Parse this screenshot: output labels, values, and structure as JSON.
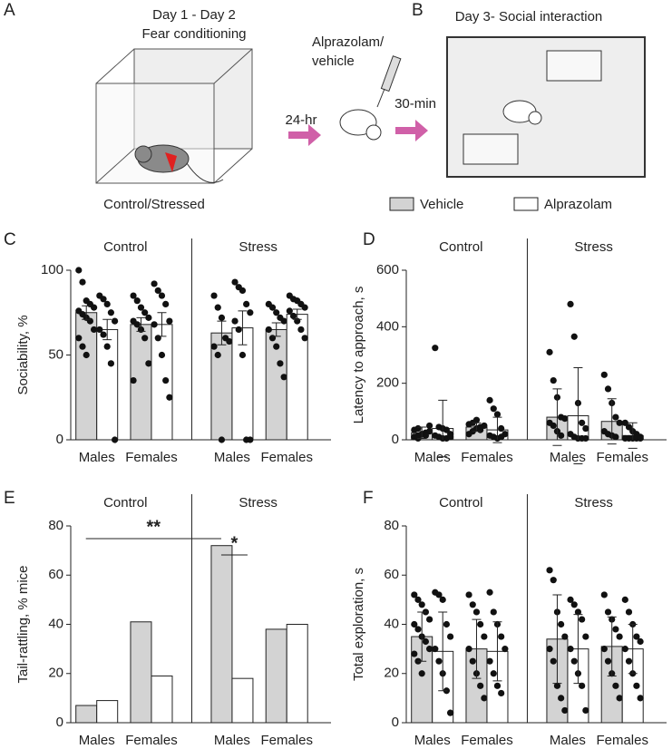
{
  "illustration": {
    "panel_a": "A",
    "panel_b": "B",
    "day12": "Day 1 - Day 2",
    "fear": "Fear conditioning",
    "group": "Control/Stressed",
    "drug1": "Alprazolam/",
    "drug2": "vehicle",
    "wait1": "24-hr",
    "wait2": "30-min",
    "day3": "Day 3- Social interaction"
  },
  "legend": [
    {
      "name": "Vehicle",
      "color": "#d3d3d3"
    },
    {
      "name": "Alprazolam",
      "color": "#ffffff"
    }
  ],
  "chart_data": [
    {
      "type": "bar",
      "panel": "C",
      "ylabel": "Sociability, %",
      "groups": [
        "Control",
        "Stress"
      ],
      "categories": [
        "Males",
        "Females",
        "Males",
        "Females"
      ],
      "ylim": [
        0,
        100
      ],
      "yticks": [
        0,
        50,
        100
      ],
      "series": [
        {
          "values": [
            75,
            68,
            63,
            65
          ],
          "errors": [
            4,
            4,
            7,
            4
          ],
          "points": [
            [
              100,
              93,
              82,
              80,
              78,
              76,
              74,
              72,
              70,
              65,
              60,
              55,
              50
            ],
            [
              85,
              82,
              78,
              75,
              72,
              70,
              68,
              65,
              60,
              45,
              35
            ],
            [
              85,
              78,
              72,
              60,
              58,
              55,
              50,
              0
            ],
            [
              80,
              78,
              75,
              72,
              70,
              65,
              60,
              55,
              45,
              37
            ]
          ]
        },
        {
          "values": [
            65,
            68,
            66,
            74
          ],
          "errors": [
            6,
            7,
            10,
            3
          ],
          "points": [
            [
              85,
              83,
              80,
              75,
              70,
              65,
              62,
              55,
              45,
              0
            ],
            [
              92,
              88,
              85,
              80,
              70,
              68,
              60,
              50,
              35,
              25
            ],
            [
              93,
              90,
              88,
              80,
              75,
              70,
              65,
              50,
              0,
              0
            ],
            [
              85,
              83,
              82,
              80,
              78,
              76,
              73,
              70,
              65,
              60
            ]
          ]
        }
      ]
    },
    {
      "type": "bar",
      "panel": "D",
      "ylabel": "Latency to approach, s",
      "groups": [
        "Control",
        "Stress"
      ],
      "categories": [
        "Males",
        "Females",
        "Males",
        "Females"
      ],
      "ylim": [
        0,
        600
      ],
      "yticks": [
        0,
        200,
        400,
        600
      ],
      "series": [
        {
          "values": [
            25,
            45,
            80,
            65
          ],
          "errors": [
            20,
            15,
            100,
            80
          ],
          "points": [
            [
              10,
              15,
              20,
              25,
              30,
              35,
              40,
              20,
              15,
              50,
              10,
              5
            ],
            [
              20,
              30,
              40,
              45,
              50,
              55,
              60,
              70,
              35
            ],
            [
              310,
              210,
              150,
              80,
              75,
              60,
              50,
              30,
              15
            ],
            [
              230,
              180,
              130,
              80,
              60,
              30,
              20,
              15,
              10
            ]
          ]
        },
        {
          "values": [
            40,
            35,
            85,
            15
          ],
          "errors": [
            100,
            45,
            170,
            45
          ],
          "points": [
            [
              325,
              45,
              40,
              35,
              20,
              15,
              10,
              5,
              5,
              10
            ],
            [
              140,
              110,
              90,
              40,
              20,
              15,
              10,
              5,
              10
            ],
            [
              480,
              365,
              130,
              60,
              40,
              20,
              10,
              5,
              5,
              5
            ],
            [
              60,
              45,
              30,
              20,
              10,
              5,
              5,
              5,
              5,
              5
            ]
          ]
        }
      ]
    },
    {
      "type": "bar",
      "panel": "E",
      "ylabel": "Tail-rattling, % mice",
      "groups": [
        "Control",
        "Stress"
      ],
      "categories": [
        "Males",
        "Females",
        "Males",
        "Females"
      ],
      "ylim": [
        0,
        80
      ],
      "yticks": [
        0,
        20,
        40,
        60,
        80
      ],
      "annotations": [
        "**",
        "*"
      ],
      "series": [
        {
          "values": [
            7,
            41,
            72,
            38
          ]
        },
        {
          "values": [
            9,
            19,
            18,
            40
          ]
        }
      ]
    },
    {
      "type": "bar",
      "panel": "F",
      "ylabel": "Total exploration, s",
      "groups": [
        "Control",
        "Stress"
      ],
      "categories": [
        "Males",
        "Females",
        "Males",
        "Females"
      ],
      "ylim": [
        0,
        80
      ],
      "yticks": [
        0,
        20,
        40,
        60,
        80
      ],
      "series": [
        {
          "values": [
            35,
            30,
            34,
            31
          ],
          "errors": [
            10,
            12,
            18,
            12
          ],
          "points": [
            [
              52,
              50,
              48,
              45,
              42,
              40,
              38,
              35,
              33,
              30,
              28,
              25,
              20
            ],
            [
              52,
              48,
              45,
              40,
              35,
              30,
              25,
              20,
              15,
              10
            ],
            [
              62,
              58,
              45,
              40,
              35,
              30,
              25,
              15,
              10,
              5
            ],
            [
              52,
              45,
              42,
              38,
              35,
              30,
              25,
              20,
              15,
              10
            ]
          ]
        },
        {
          "values": [
            29,
            29,
            30,
            30
          ],
          "errors": [
            16,
            12,
            14,
            10
          ],
          "points": [
            [
              53,
              52,
              50,
              40,
              35,
              30,
              25,
              20,
              13,
              4
            ],
            [
              53,
              45,
              40,
              35,
              30,
              25,
              20,
              15,
              12
            ],
            [
              50,
              48,
              45,
              42,
              35,
              30,
              25,
              20,
              15,
              5
            ],
            [
              50,
              45,
              40,
              35,
              33,
              30,
              25,
              20,
              15,
              10
            ]
          ]
        }
      ]
    }
  ]
}
